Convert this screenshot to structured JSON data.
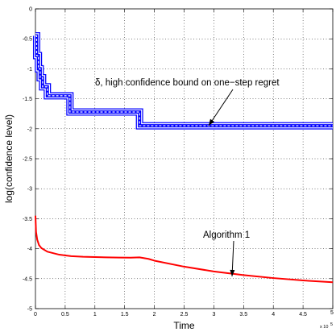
{
  "chart_data": {
    "type": "line",
    "xlabel": "Time",
    "ylabel": "log(confidence level)",
    "x_multiplier_label": "x 10",
    "x_multiplier_exp": "5",
    "xlim": [
      0,
      5
    ],
    "ylim": [
      -5,
      0
    ],
    "grid": true,
    "x_ticks": [
      "0",
      "0.5",
      "1",
      "1.5",
      "2",
      "2.5",
      "3",
      "3.5",
      "4",
      "4.5",
      "5"
    ],
    "y_ticks": [
      "0",
      "-0.5",
      "-1",
      "-1.5",
      "-2",
      "-2.5",
      "-3",
      "-3.5",
      "-4",
      "-4.5",
      "-5"
    ],
    "series": [
      {
        "color": "#0000ff",
        "style": "step",
        "band": true,
        "points": [
          [
            0.0,
            -0.45
          ],
          [
            0.02,
            -0.45
          ],
          [
            0.02,
            -0.78
          ],
          [
            0.05,
            -0.78
          ],
          [
            0.05,
            -1.0
          ],
          [
            0.08,
            -1.0
          ],
          [
            0.08,
            -1.15
          ],
          [
            0.12,
            -1.15
          ],
          [
            0.12,
            -1.3
          ],
          [
            0.2,
            -1.3
          ],
          [
            0.2,
            -1.45
          ],
          [
            0.58,
            -1.45
          ],
          [
            0.58,
            -1.72
          ],
          [
            1.75,
            -1.72
          ],
          [
            1.75,
            -1.95
          ],
          [
            5.0,
            -1.95
          ]
        ]
      },
      {
        "color": "#ff0000",
        "style": "line",
        "points": [
          [
            0.0,
            -3.45
          ],
          [
            0.01,
            -3.72
          ],
          [
            0.03,
            -3.85
          ],
          [
            0.06,
            -3.94
          ],
          [
            0.1,
            -3.99
          ],
          [
            0.2,
            -4.05
          ],
          [
            0.4,
            -4.1
          ],
          [
            0.6,
            -4.125
          ],
          [
            0.8,
            -4.135
          ],
          [
            1.0,
            -4.14
          ],
          [
            1.2,
            -4.145
          ],
          [
            1.4,
            -4.148
          ],
          [
            1.6,
            -4.15
          ],
          [
            1.75,
            -4.145
          ],
          [
            1.9,
            -4.17
          ],
          [
            2.0,
            -4.2
          ],
          [
            2.5,
            -4.3
          ],
          [
            3.0,
            -4.38
          ],
          [
            3.5,
            -4.44
          ],
          [
            4.0,
            -4.49
          ],
          [
            4.5,
            -4.53
          ],
          [
            5.0,
            -4.56
          ]
        ]
      }
    ],
    "annotations": [
      {
        "text": "δ, high confidence bound on one−step regret",
        "target": [
          3.0,
          -1.95
        ]
      },
      {
        "text": "Algorithm 1",
        "target": [
          3.3,
          -4.42
        ]
      }
    ]
  }
}
